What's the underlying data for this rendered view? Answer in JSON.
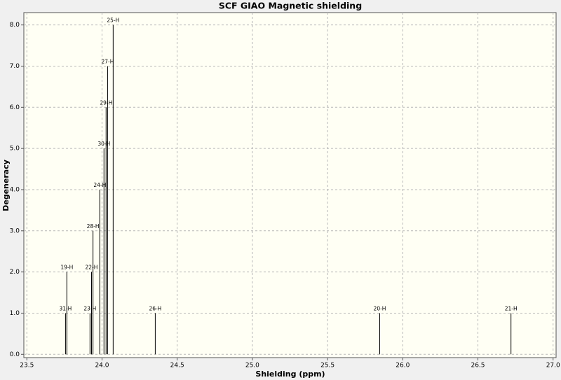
{
  "chart_data": {
    "type": "stick",
    "title": "SCF GIAO Magnetic shielding",
    "x_label": "Shielding (ppm)",
    "y_label": "Degeneracy",
    "x": [
      23.757,
      23.766,
      23.92,
      23.93,
      23.94,
      23.985,
      24.013,
      24.027,
      24.037,
      24.074,
      24.354,
      25.847,
      26.72
    ],
    "values": [
      1,
      2,
      1,
      2,
      3,
      4,
      5,
      6,
      7,
      8,
      1,
      1,
      1
    ],
    "peak_labels": [
      "31-H",
      "19-H",
      "23-H",
      "22-H",
      "28-H",
      "24-H",
      "30-H",
      "29-H",
      "27-H",
      "25-H",
      "26-H",
      "20-H",
      "21-H"
    ],
    "color": "#000000",
    "xlim": [
      23.48,
      27.02
    ],
    "ylim": [
      -0.08,
      8.3
    ],
    "xticks": [
      {
        "value": 23.5,
        "label": "23.5"
      },
      {
        "value": 24,
        "label": "24.0"
      },
      {
        "value": 24.5,
        "label": "24.5"
      },
      {
        "value": 25,
        "label": "25.0"
      },
      {
        "value": 25.5,
        "label": "25.5"
      },
      {
        "value": 26,
        "label": "26.0"
      },
      {
        "value": 26.5,
        "label": "26.5"
      },
      {
        "value": 27,
        "label": "27.0"
      }
    ],
    "yticks": [
      {
        "value": 0,
        "label": "0.0"
      },
      {
        "value": 1,
        "label": "1.0"
      },
      {
        "value": 2,
        "label": "2.0"
      },
      {
        "value": 3,
        "label": "3.0"
      },
      {
        "value": 4,
        "label": "4.0"
      },
      {
        "value": 5,
        "label": "5.0"
      },
      {
        "value": 6,
        "label": "6.0"
      },
      {
        "value": 7,
        "label": "7.0"
      },
      {
        "value": 8,
        "label": "8.0"
      }
    ],
    "grid": true
  }
}
